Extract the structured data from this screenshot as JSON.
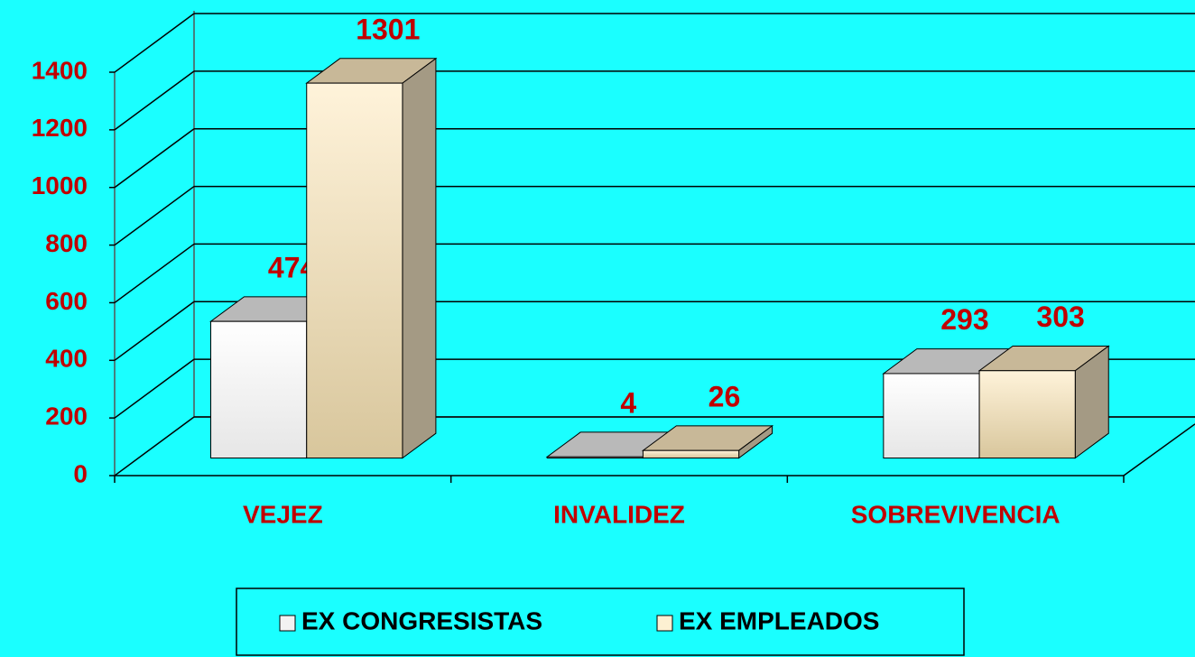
{
  "chart_data": {
    "type": "bar",
    "categories": [
      "VEJEZ",
      "INVALIDEZ",
      "SOBREVIVENCIA"
    ],
    "series": [
      {
        "name": "EX CONGRESISTAS",
        "color": "#f2f2f2",
        "values": [
          474,
          4,
          293
        ]
      },
      {
        "name": "EX EMPLEADOS",
        "color": "#fdf0d2",
        "values": [
          1301,
          26,
          303
        ]
      }
    ],
    "ylim": [
      0,
      1400
    ],
    "yticks": [
      0,
      200,
      400,
      600,
      800,
      1000,
      1200,
      1400
    ],
    "grid": true,
    "legend": "bottom"
  }
}
